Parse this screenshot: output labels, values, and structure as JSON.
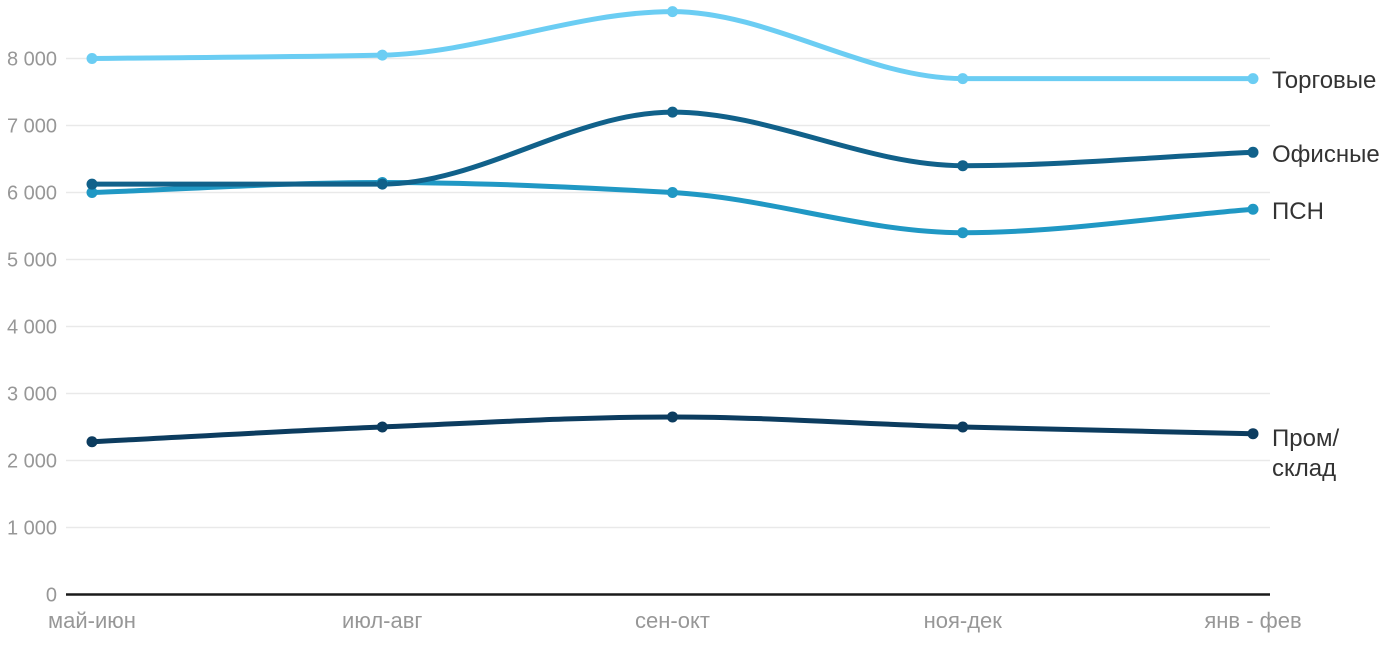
{
  "chart_data": {
    "type": "line",
    "title": "",
    "xlabel": "",
    "ylabel": "",
    "categories": [
      "май-июн",
      "июл-авг",
      "сен-окт",
      "ноя-дек",
      "янв - фев"
    ],
    "series": [
      {
        "name": "Торговые",
        "color": "#6BCDF3",
        "values": [
          8000,
          8050,
          8700,
          7700,
          7700
        ]
      },
      {
        "name": "ПСН",
        "color": "#2098C4",
        "values": [
          6000,
          6150,
          6000,
          5400,
          5750
        ]
      },
      {
        "name": "Офисные",
        "color": "#11618A",
        "values": [
          6125,
          6125,
          7200,
          6400,
          6600
        ]
      },
      {
        "name": "Пром/склад",
        "color": "#0C3C5F",
        "values": [
          2280,
          2500,
          2650,
          2500,
          2400
        ]
      }
    ],
    "yticks": [
      {
        "value": 0,
        "label": "0"
      },
      {
        "value": 1000,
        "label": "1 000"
      },
      {
        "value": 2000,
        "label": "2 000"
      },
      {
        "value": 3000,
        "label": "3 000"
      },
      {
        "value": 4000,
        "label": "4 000"
      },
      {
        "value": 5000,
        "label": "5 000"
      },
      {
        "value": 6000,
        "label": "6 000"
      },
      {
        "value": 7000,
        "label": "7 000"
      },
      {
        "value": 8000,
        "label": "8 000"
      }
    ],
    "ylim": [
      0,
      8700
    ],
    "grid": true,
    "legend_position": "right-of-line-ends",
    "colors": {
      "grid": "#E9E9E9",
      "axis": "#1A1A1A",
      "tick_labels": "#979797",
      "series_labels": "#333333",
      "background": "#FFFFFF"
    }
  }
}
